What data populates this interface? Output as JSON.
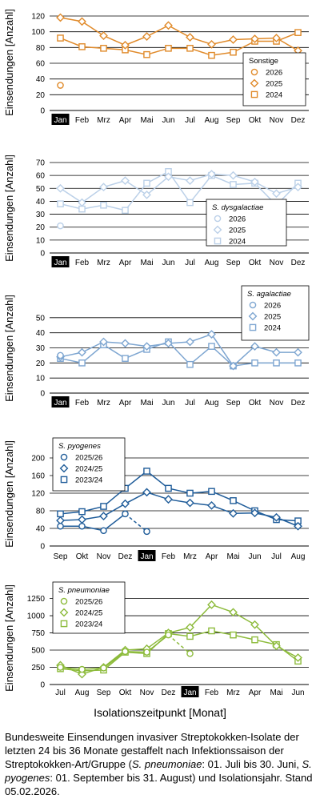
{
  "chart_data": [
    {
      "type": "line",
      "categories": [
        "Jan",
        "Feb",
        "Mrz",
        "Apr",
        "Mai",
        "Jun",
        "Jul",
        "Aug",
        "Sep",
        "Okt",
        "Nov",
        "Dez"
      ],
      "highlight_category": "Jan",
      "ylabel": "Einsendungen [Anzahl]",
      "ylim": [
        0,
        120
      ],
      "yticks": [
        0,
        20,
        40,
        60,
        80,
        100,
        120
      ],
      "grid": true,
      "legend_position": "right",
      "legend_title": "Sonstige",
      "legend_title_italic": false,
      "color": "#E08A2A",
      "series": [
        {
          "name": "2026",
          "marker": "circle",
          "values": [
            32,
            null,
            null,
            null,
            null,
            null,
            null,
            null,
            null,
            null,
            null,
            null
          ],
          "line": false
        },
        {
          "name": "2025",
          "marker": "diamond",
          "values": [
            118,
            113,
            95,
            83,
            94,
            108,
            93,
            84,
            90,
            91,
            92,
            76
          ],
          "line": true
        },
        {
          "name": "2024",
          "marker": "square",
          "values": [
            92,
            81,
            79,
            77,
            71,
            79,
            79,
            70,
            74,
            88,
            88,
            99
          ],
          "line": true
        }
      ]
    },
    {
      "type": "line",
      "categories": [
        "Jan",
        "Feb",
        "Mrz",
        "Apr",
        "Mai",
        "Jun",
        "Jul",
        "Aug",
        "Sep",
        "Okt",
        "Nov",
        "Dez"
      ],
      "highlight_category": "Jan",
      "ylabel": "Einsendungen [Anzahl]",
      "ylim": [
        0,
        70
      ],
      "yticks": [
        0,
        10,
        20,
        30,
        40,
        50,
        60,
        70
      ],
      "grid": true,
      "legend_position": "right",
      "legend_title": "S. dysgalactiae",
      "legend_title_italic": true,
      "color": "#BBD0E8",
      "series": [
        {
          "name": "2026",
          "marker": "circle",
          "values": [
            21,
            null,
            null,
            null,
            null,
            null,
            null,
            null,
            null,
            null,
            null,
            null
          ],
          "line": false
        },
        {
          "name": "2025",
          "marker": "diamond",
          "values": [
            50,
            39,
            51,
            56,
            45,
            59,
            56,
            61,
            60,
            55,
            46,
            51
          ],
          "line": true
        },
        {
          "name": "2024",
          "marker": "square",
          "values": [
            38,
            34,
            37,
            33,
            54,
            63,
            39,
            60,
            53,
            54,
            37,
            54
          ],
          "line": true
        }
      ]
    },
    {
      "type": "line",
      "categories": [
        "Jan",
        "Feb",
        "Mrz",
        "Apr",
        "Mai",
        "Jun",
        "Jul",
        "Aug",
        "Sep",
        "Okt",
        "Nov",
        "Dez"
      ],
      "highlight_category": "Jan",
      "ylabel": "Einsendungen [Anzahl]",
      "ylim": [
        0,
        60
      ],
      "yticks": [
        0,
        10,
        20,
        30,
        40,
        50
      ],
      "grid": true,
      "legend_position": "right",
      "legend_title": "S. agalactiae",
      "legend_title_italic": true,
      "color": "#7EA6D1",
      "series": [
        {
          "name": "2026",
          "marker": "circle",
          "values": [
            25,
            null,
            null,
            null,
            null,
            null,
            null,
            null,
            null,
            null,
            null,
            null
          ],
          "line": false
        },
        {
          "name": "2025",
          "marker": "diamond",
          "values": [
            24,
            27,
            34,
            33,
            31,
            33,
            34,
            39,
            18,
            31,
            27,
            27
          ],
          "line": true
        },
        {
          "name": "2024",
          "marker": "square",
          "values": [
            23,
            20,
            32,
            23,
            29,
            34,
            19,
            31,
            18,
            20,
            20,
            20
          ],
          "line": true
        }
      ]
    },
    {
      "type": "line",
      "categories": [
        "Sep",
        "Okt",
        "Nov",
        "Dez",
        "Jan",
        "Feb",
        "Mrz",
        "Apr",
        "Mai",
        "Jun",
        "Jul",
        "Aug"
      ],
      "highlight_category": "Jan",
      "ylabel": "Einsendungen [Anzahl]",
      "ylim": [
        0,
        220
      ],
      "yticks": [
        0,
        40,
        80,
        120,
        160,
        200
      ],
      "grid": true,
      "legend_position": "top-left",
      "legend_title": "S. pyogenes",
      "legend_title_italic": true,
      "color": "#1F5C99",
      "series": [
        {
          "name": "2025/26",
          "marker": "circle",
          "values": [
            45,
            45,
            35,
            73,
            33,
            null,
            null,
            null,
            null,
            null,
            null,
            null
          ],
          "line": true,
          "dashed_last_segment": true
        },
        {
          "name": "2024/25",
          "marker": "diamond",
          "values": [
            58,
            60,
            68,
            96,
            122,
            106,
            98,
            92,
            74,
            75,
            65,
            45
          ],
          "line": true
        },
        {
          "name": "2023/24",
          "marker": "square",
          "values": [
            73,
            78,
            90,
            131,
            170,
            131,
            120,
            124,
            103,
            80,
            60,
            57
          ],
          "line": true
        }
      ]
    },
    {
      "type": "line",
      "categories": [
        "Jul",
        "Aug",
        "Sep",
        "Okt",
        "Nov",
        "Dez",
        "Jan",
        "Feb",
        "Mrz",
        "Apr",
        "Mai",
        "Jun"
      ],
      "highlight_category": "Jan",
      "ylabel": "Einsendungen [Anzahl]",
      "ylim": [
        0,
        1350
      ],
      "yticks": [
        0,
        250,
        500,
        750,
        1000,
        1250
      ],
      "grid": true,
      "legend_position": "top-left",
      "legend_title": "S. pneumoniae",
      "legend_title_italic": true,
      "color": "#8DBB3C",
      "series": [
        {
          "name": "2025/26",
          "marker": "circle",
          "values": [
            250,
            220,
            240,
            480,
            470,
            720,
            450,
            null,
            null,
            null,
            null,
            null
          ],
          "line": true,
          "dashed_last_segment": true
        },
        {
          "name": "2024/25",
          "marker": "diamond",
          "values": [
            280,
            150,
            250,
            500,
            520,
            750,
            830,
            1160,
            1050,
            870,
            560,
            390
          ],
          "line": true
        },
        {
          "name": "2023/24",
          "marker": "square",
          "values": [
            230,
            200,
            210,
            470,
            450,
            740,
            700,
            780,
            720,
            650,
            580,
            340
          ],
          "line": true
        }
      ]
    }
  ],
  "xlabel": "Isolationszeitpunkt [Monat]",
  "caption": {
    "p1": "Bundesweite Einsendungen invasiver Streptokokken-Isolate der letzten 24 bis 36 Monate gestaffelt nach Infektionssaison der Streptokokken-Art/Gruppe (",
    "sp1": "S. pneumoniae",
    "p2": ": 01. Juli bis 30. Juni, ",
    "sp2": "S. pyogenes",
    "p3": ": 01. September bis 31. August) und Isolationsjahr. Stand 05.02.2026."
  }
}
